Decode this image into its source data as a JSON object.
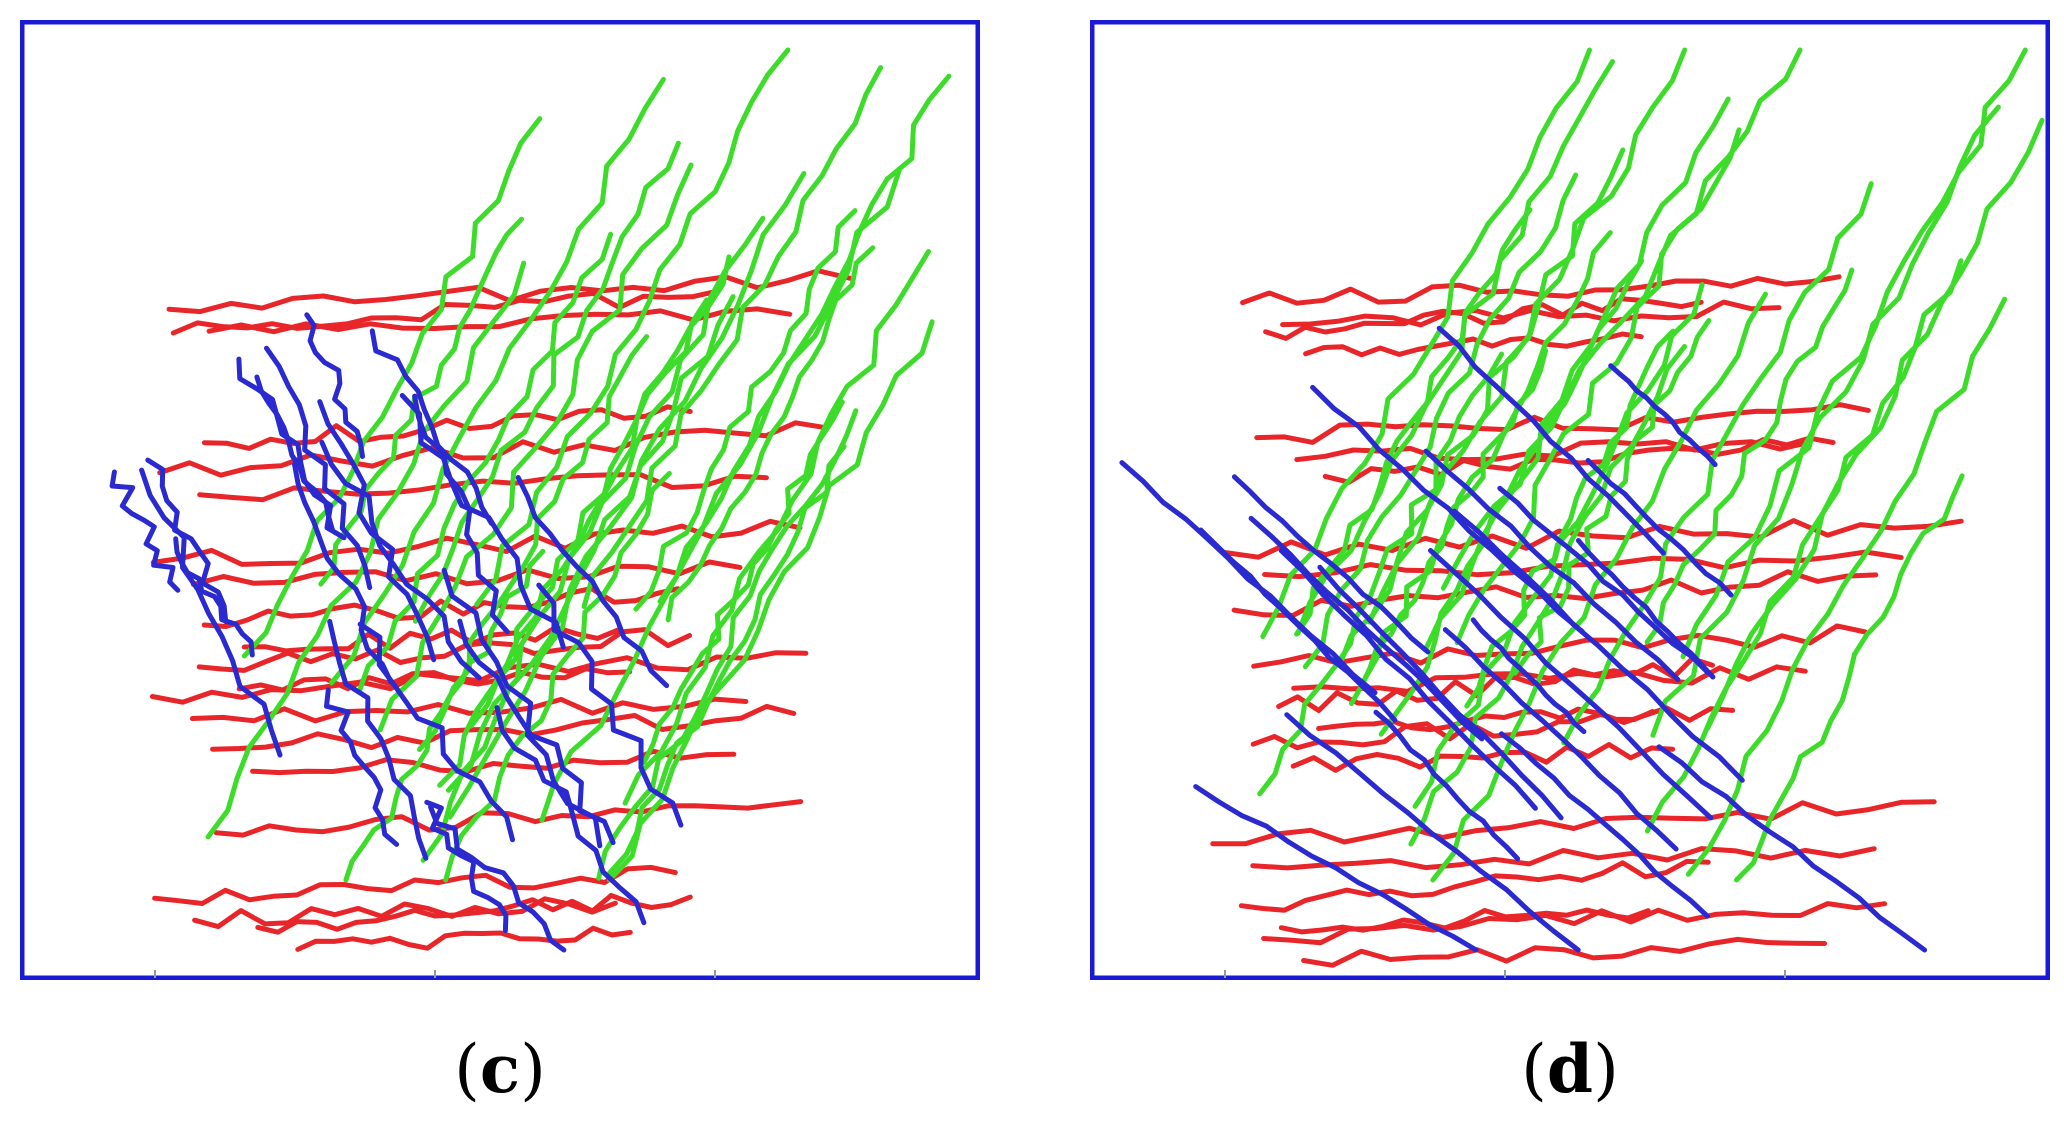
{
  "panels": [
    {
      "id": "c",
      "label": "c"
    },
    {
      "id": "d",
      "label": "d"
    }
  ],
  "colors": {
    "frame": "#1a1ad6",
    "family_red": "#e8262a",
    "family_green": "#3ddc2a",
    "family_blue": "#2a2ad0"
  }
}
